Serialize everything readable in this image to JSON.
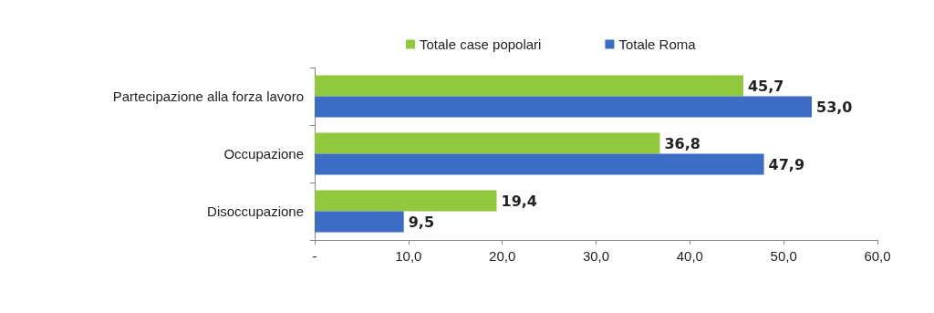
{
  "chart_data": {
    "type": "bar",
    "orientation": "horizontal",
    "categories": [
      "Partecipazione alla forza lavoro",
      "Occupazione",
      "Disoccupazione"
    ],
    "series": [
      {
        "name": "Totale case popolari",
        "color": "#92c83e",
        "values": [
          45.7,
          36.8,
          19.4
        ],
        "value_labels": [
          "45,7",
          "36,8",
          "19,4"
        ]
      },
      {
        "name": "Totale Roma",
        "color": "#3d6cc4",
        "values": [
          53.0,
          47.9,
          9.5
        ],
        "value_labels": [
          "53,0",
          "47,9",
          "9,5"
        ]
      }
    ],
    "xlim": [
      0,
      60
    ],
    "xticks": [
      {
        "value": 0,
        "label": "-"
      },
      {
        "value": 10,
        "label": "10,0"
      },
      {
        "value": 20,
        "label": "20,0"
      },
      {
        "value": 30,
        "label": "30,0"
      },
      {
        "value": 40,
        "label": "40,0"
      },
      {
        "value": 50,
        "label": "50,0"
      },
      {
        "value": 60,
        "label": "60,0"
      }
    ],
    "grid": false,
    "legend": "top"
  }
}
